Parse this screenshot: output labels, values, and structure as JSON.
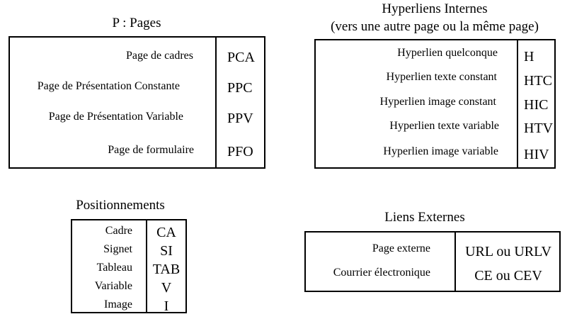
{
  "pages": {
    "title": "P : Pages",
    "rows": [
      {
        "label": "Page de cadres",
        "code": "PCA"
      },
      {
        "label": "Page de Présentation Constante",
        "code": "PPC"
      },
      {
        "label": "Page de Présentation Variable",
        "code": "PPV"
      },
      {
        "label": "Page de formulaire",
        "code": "PFO"
      }
    ]
  },
  "hyperliens": {
    "title": "Hyperliens Internes",
    "subtitle": "(vers une autre page ou la même page)",
    "rows": [
      {
        "label": "Hyperlien quelconque",
        "code": "H"
      },
      {
        "label": "Hyperlien texte constant",
        "code": "HTC"
      },
      {
        "label": "Hyperlien image constant",
        "code": "HIC"
      },
      {
        "label": "Hyperlien texte variable",
        "code": "HTV"
      },
      {
        "label": "Hyperlien image variable",
        "code": "HIV"
      }
    ]
  },
  "positionnements": {
    "title": "Positionnements",
    "rows": [
      {
        "label": "Cadre",
        "code": "CA"
      },
      {
        "label": "Signet",
        "code": "SI"
      },
      {
        "label": "Tableau",
        "code": "TAB"
      },
      {
        "label": "Variable",
        "code": "V"
      },
      {
        "label": "Image",
        "code": "I"
      }
    ]
  },
  "liens_externes": {
    "title": "Liens Externes",
    "rows": [
      {
        "label": "Page externe",
        "code": "URL ou URLV"
      },
      {
        "label": "Courrier électronique",
        "code": "CE ou CEV"
      }
    ]
  }
}
